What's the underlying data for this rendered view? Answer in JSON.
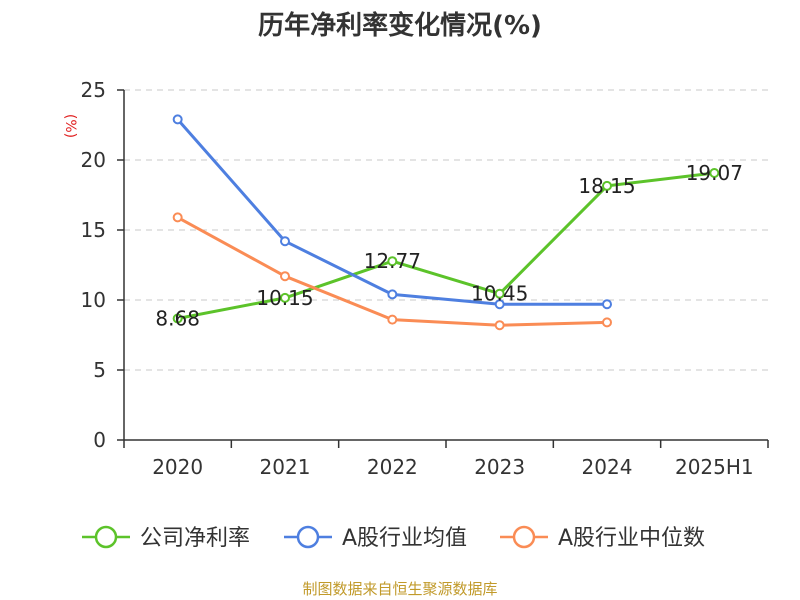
{
  "chart_data": {
    "type": "line",
    "title": "历年净利率变化情况(%)",
    "xlabel": "",
    "ylabel": "(%)",
    "categories": [
      "2020",
      "2021",
      "2022",
      "2023",
      "2024",
      "2025H1"
    ],
    "ylim": [
      0,
      25
    ],
    "yticks": [
      0,
      5,
      10,
      15,
      20,
      25
    ],
    "grid": true,
    "legend_position": "bottom",
    "series": [
      {
        "name": "公司净利率",
        "color": "#5cc32a",
        "values": [
          8.68,
          10.15,
          12.77,
          10.45,
          18.15,
          19.07
        ],
        "labeled": true
      },
      {
        "name": "A股行业均值",
        "color": "#4e7fe0",
        "values": [
          22.9,
          14.2,
          10.4,
          9.7,
          9.7,
          null
        ],
        "labeled": false
      },
      {
        "name": "A股行业中位数",
        "color": "#fa8c55",
        "values": [
          15.9,
          11.7,
          8.6,
          8.2,
          8.4,
          null
        ],
        "labeled": false
      }
    ],
    "source": "制图数据来自恒生聚源数据库",
    "source_color": "#c19a2a",
    "ylabel_color": "#e02020"
  }
}
